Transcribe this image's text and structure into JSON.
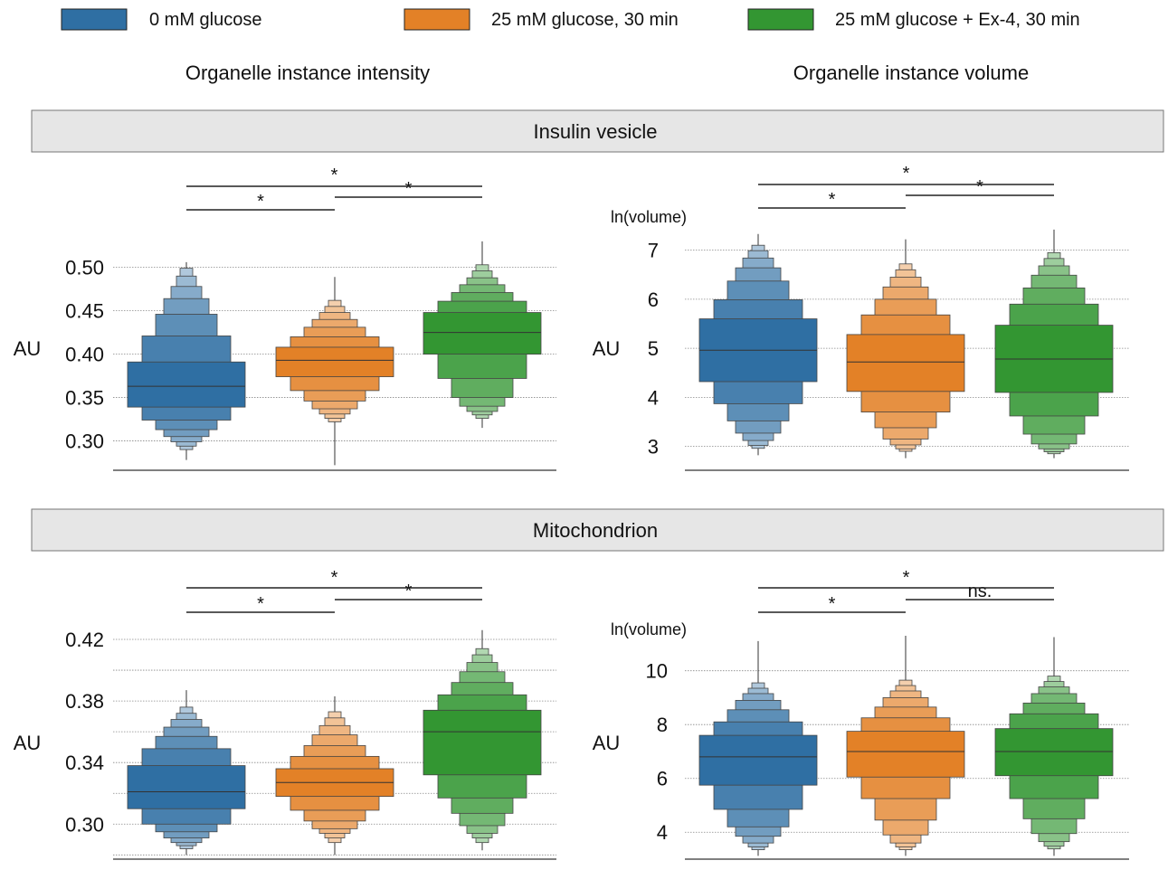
{
  "legend": [
    {
      "label": "0 mM glucose",
      "color": "#2f6fa3"
    },
    {
      "label": "25 mM glucose, 30 min",
      "color": "#e38127"
    },
    {
      "label": "25 mM glucose + Ex-4, 30 min",
      "color": "#339632"
    }
  ],
  "column_titles": [
    "Organelle instance intensity",
    "Organelle instance volume"
  ],
  "row_titles": [
    "Insulin vesicle",
    "Mitochondrion"
  ],
  "chart_data": [
    {
      "type": "boxen",
      "row": "Insulin vesicle",
      "column": "Organelle instance intensity",
      "ylabel": "AU",
      "unit_label": "",
      "yticks": [
        0.3,
        0.35,
        0.4,
        0.45,
        0.5
      ],
      "ytick_labels": [
        "0.30",
        "0.35",
        "0.40",
        "0.45",
        "0.50"
      ],
      "extra_gridlines": [],
      "ylim": [
        0.262,
        0.533
      ],
      "categories": [
        "0 mM glucose",
        "25 mM glucose, 30 min",
        "25 mM glucose + Ex-4, 30 min"
      ],
      "series": [
        {
          "median": 0.363,
          "levels": [
            [
              0.339,
              0.391
            ],
            [
              0.324,
              0.421
            ],
            [
              0.313,
              0.446
            ],
            [
              0.305,
              0.464
            ],
            [
              0.299,
              0.478
            ],
            [
              0.294,
              0.49
            ],
            [
              0.29,
              0.499
            ]
          ],
          "whisker": [
            0.278,
            0.506
          ]
        },
        {
          "median": 0.393,
          "levels": [
            [
              0.374,
              0.408
            ],
            [
              0.358,
              0.42
            ],
            [
              0.346,
              0.431
            ],
            [
              0.337,
              0.44
            ],
            [
              0.331,
              0.448
            ],
            [
              0.326,
              0.455
            ],
            [
              0.322,
              0.462
            ]
          ],
          "whisker": [
            0.272,
            0.489
          ]
        },
        {
          "median": 0.425,
          "levels": [
            [
              0.4,
              0.448
            ],
            [
              0.372,
              0.461
            ],
            [
              0.35,
              0.471
            ],
            [
              0.34,
              0.48
            ],
            [
              0.334,
              0.488
            ],
            [
              0.33,
              0.496
            ],
            [
              0.326,
              0.503
            ]
          ],
          "whisker": [
            0.315,
            0.53
          ]
        }
      ],
      "significance": [
        {
          "from": 0,
          "to": 1,
          "label": "*"
        },
        {
          "from": 1,
          "to": 2,
          "label": "*"
        },
        {
          "from": 0,
          "to": 2,
          "label": "*"
        }
      ]
    },
    {
      "type": "boxen",
      "row": "Insulin vesicle",
      "column": "Organelle instance volume",
      "ylabel": "AU",
      "unit_label": "ln(volume)",
      "yticks": [
        3,
        4,
        5,
        6,
        7
      ],
      "ytick_labels": [
        "3",
        "4",
        "5",
        "6",
        "7"
      ],
      "extra_gridlines": [],
      "ylim": [
        2.55,
        7.38
      ],
      "categories": [
        "0 mM glucose",
        "25 mM glucose, 30 min",
        "25 mM glucose + Ex-4, 30 min"
      ],
      "series": [
        {
          "median": 4.96,
          "levels": [
            [
              4.32,
              5.6
            ],
            [
              3.87,
              5.99
            ],
            [
              3.52,
              6.37
            ],
            [
              3.27,
              6.64
            ],
            [
              3.12,
              6.84
            ],
            [
              3.02,
              6.99
            ],
            [
              2.96,
              7.1
            ]
          ],
          "whisker": [
            2.82,
            7.33
          ]
        },
        {
          "median": 4.72,
          "levels": [
            [
              4.12,
              5.28
            ],
            [
              3.7,
              5.68
            ],
            [
              3.38,
              6.0
            ],
            [
              3.15,
              6.25
            ],
            [
              3.03,
              6.45
            ],
            [
              2.95,
              6.6
            ],
            [
              2.9,
              6.72
            ]
          ],
          "whisker": [
            2.76,
            7.22
          ]
        },
        {
          "median": 4.78,
          "levels": [
            [
              4.1,
              5.47
            ],
            [
              3.62,
              5.9
            ],
            [
              3.25,
              6.23
            ],
            [
              3.05,
              6.49
            ],
            [
              2.95,
              6.68
            ],
            [
              2.89,
              6.83
            ],
            [
              2.85,
              6.95
            ]
          ],
          "whisker": [
            2.76,
            7.42
          ]
        }
      ],
      "significance": [
        {
          "from": 0,
          "to": 1,
          "label": "*"
        },
        {
          "from": 1,
          "to": 2,
          "label": "*"
        },
        {
          "from": 0,
          "to": 2,
          "label": "*"
        }
      ]
    },
    {
      "type": "boxen",
      "row": "Mitochondrion",
      "column": "Organelle instance intensity",
      "ylabel": "AU",
      "unit_label": "",
      "yticks": [
        0.3,
        0.34,
        0.38,
        0.42
      ],
      "ytick_labels": [
        "0.30",
        "0.34",
        "0.38",
        "0.42"
      ],
      "extra_gridlines": [
        0.28,
        0.32,
        0.36,
        0.4
      ],
      "ylim": [
        0.279,
        0.43
      ],
      "categories": [
        "0 mM glucose",
        "25 mM glucose, 30 min",
        "25 mM glucose + Ex-4, 30 min"
      ],
      "series": [
        {
          "median": 0.321,
          "levels": [
            [
              0.31,
              0.338
            ],
            [
              0.3,
              0.349
            ],
            [
              0.295,
              0.357
            ],
            [
              0.291,
              0.363
            ],
            [
              0.288,
              0.368
            ],
            [
              0.286,
              0.372
            ],
            [
              0.284,
              0.376
            ]
          ],
          "whisker": [
            0.28,
            0.387
          ]
        },
        {
          "median": 0.327,
          "levels": [
            [
              0.318,
              0.336
            ],
            [
              0.309,
              0.344
            ],
            [
              0.302,
              0.351
            ],
            [
              0.297,
              0.358
            ],
            [
              0.294,
              0.364
            ],
            [
              0.291,
              0.369
            ],
            [
              0.288,
              0.373
            ]
          ],
          "whisker": [
            0.28,
            0.383
          ]
        },
        {
          "median": 0.36,
          "levels": [
            [
              0.332,
              0.374
            ],
            [
              0.317,
              0.384
            ],
            [
              0.307,
              0.392
            ],
            [
              0.299,
              0.399
            ],
            [
              0.294,
              0.405
            ],
            [
              0.291,
              0.41
            ],
            [
              0.288,
              0.414
            ]
          ],
          "whisker": [
            0.283,
            0.426
          ]
        }
      ],
      "significance": [
        {
          "from": 0,
          "to": 1,
          "label": "*"
        },
        {
          "from": 1,
          "to": 2,
          "label": "*"
        },
        {
          "from": 0,
          "to": 2,
          "label": "*"
        }
      ]
    },
    {
      "type": "boxen",
      "row": "Mitochondrion",
      "column": "Organelle instance volume",
      "ylabel": "AU",
      "unit_label": "ln(volume)",
      "yticks": [
        4,
        6,
        8,
        10
      ],
      "ytick_labels": [
        "4",
        "6",
        "8",
        "10"
      ],
      "extra_gridlines": [],
      "ylim": [
        3.0,
        11.4
      ],
      "categories": [
        "0 mM glucose",
        "25 mM glucose, 30 min",
        "25 mM glucose + Ex-4, 30 min"
      ],
      "series": [
        {
          "median": 6.8,
          "levels": [
            [
              5.75,
              7.6
            ],
            [
              4.85,
              8.1
            ],
            [
              4.2,
              8.55
            ],
            [
              3.85,
              8.9
            ],
            [
              3.6,
              9.15
            ],
            [
              3.45,
              9.35
            ],
            [
              3.35,
              9.55
            ]
          ],
          "whisker": [
            3.12,
            11.1
          ]
        },
        {
          "median": 7.0,
          "levels": [
            [
              6.05,
              7.75
            ],
            [
              5.25,
              8.25
            ],
            [
              4.45,
              8.65
            ],
            [
              3.9,
              9.0
            ],
            [
              3.6,
              9.25
            ],
            [
              3.45,
              9.45
            ],
            [
              3.35,
              9.65
            ]
          ],
          "whisker": [
            3.12,
            11.3
          ]
        },
        {
          "median": 7.0,
          "levels": [
            [
              6.1,
              7.85
            ],
            [
              5.25,
              8.4
            ],
            [
              4.5,
              8.8
            ],
            [
              3.95,
              9.15
            ],
            [
              3.65,
              9.4
            ],
            [
              3.48,
              9.6
            ],
            [
              3.38,
              9.8
            ]
          ],
          "whisker": [
            3.12,
            11.25
          ]
        }
      ],
      "significance": [
        {
          "from": 0,
          "to": 1,
          "label": "*"
        },
        {
          "from": 1,
          "to": 2,
          "label": "ns."
        },
        {
          "from": 0,
          "to": 2,
          "label": "*"
        }
      ]
    }
  ]
}
